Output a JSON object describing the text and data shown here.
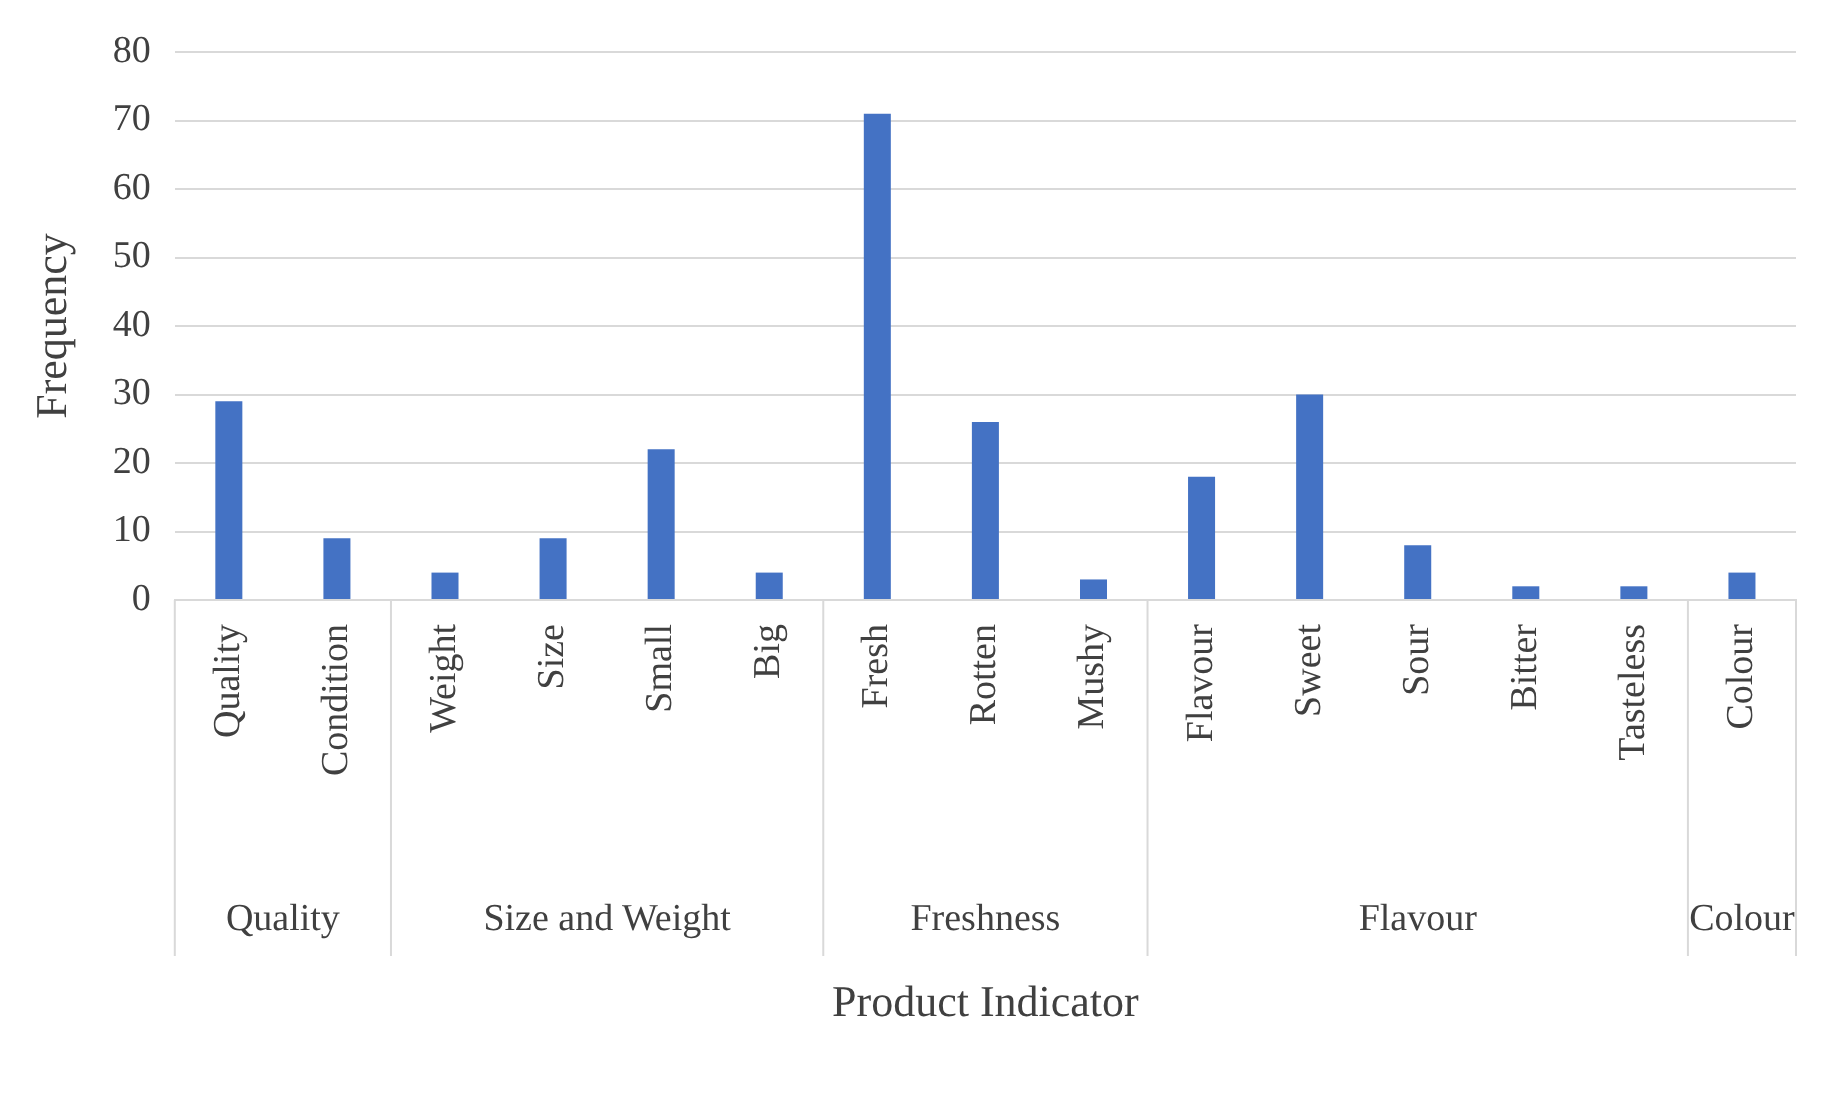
{
  "chart_data": {
    "type": "bar",
    "xlabel": "Product Indicator",
    "ylabel": "Frequency",
    "categories": [
      "Quality",
      "Condition",
      "Weight",
      "Size",
      "Small",
      "Big",
      "Fresh",
      "Rotten",
      "Mushy",
      "Flavour",
      "Sweet",
      "Sour",
      "Bitter",
      "Tasteless",
      "Colour"
    ],
    "values": [
      29,
      9,
      4,
      9,
      22,
      4,
      71,
      26,
      3,
      18,
      30,
      8,
      2,
      2,
      4
    ],
    "color": "#4472c4",
    "ylim": [
      0,
      80
    ],
    "yticks": [
      0,
      10,
      20,
      30,
      40,
      50,
      60,
      70,
      80
    ],
    "grid": "y",
    "legend": false,
    "annotations": [
      "Quality",
      "Size and Weight",
      "Freshness",
      "Flavour",
      "Colour"
    ]
  }
}
